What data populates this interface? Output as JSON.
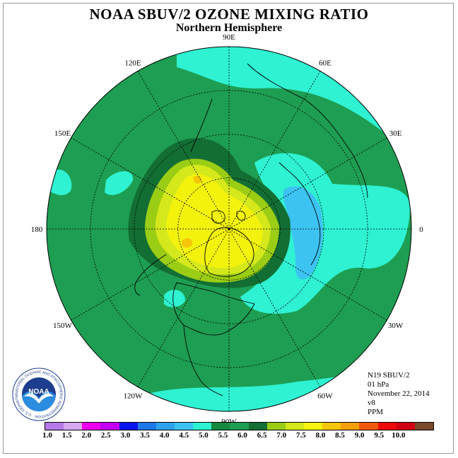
{
  "header": {
    "title": "NOAA SBUV/2 OZONE MIXING RATIO",
    "subtitle": "Northern Hemisphere"
  },
  "map": {
    "projection": "north-polar-stereographic",
    "longitude_labels": [
      {
        "text": "90E",
        "lon": 90
      },
      {
        "text": "60E",
        "lon": 60
      },
      {
        "text": "30E",
        "lon": 30
      },
      {
        "text": "0",
        "lon": 0
      },
      {
        "text": "30W",
        "lon": -30
      },
      {
        "text": "60W",
        "lon": -60
      },
      {
        "text": "90W",
        "lon": -90
      },
      {
        "text": "120W",
        "lon": -120
      },
      {
        "text": "150W",
        "lon": -150
      },
      {
        "text": "180",
        "lon": 180
      },
      {
        "text": "150E",
        "lon": 150
      },
      {
        "text": "120E",
        "lon": 120
      }
    ],
    "colors": {
      "c45": "#2ef2d2",
      "c50": "#1e9e52",
      "c55": "#17893f",
      "c60": "#136e33",
      "c65": "#9acd14",
      "c70": "#d4e81c",
      "c75": "#f2f20c",
      "c80": "#f5c60a",
      "c40": "#3cc3f2",
      "c35": "#2ea2ee",
      "coast": "#000000",
      "grid": "#000000"
    }
  },
  "info": {
    "instrument": "N19 SBUV/2",
    "level": "01 hPa",
    "date": "November 22, 2014",
    "version": "v8",
    "units": "PPM"
  },
  "colorbar": {
    "colors": [
      "#b57ae8",
      "#d8a8f0",
      "#ee00ee",
      "#c400f4",
      "#0a14f0",
      "#1e78e8",
      "#2ea2ee",
      "#3cc3f2",
      "#2ef2d2",
      "#17893f",
      "#1e9e52",
      "#136e33",
      "#9acd14",
      "#d4e81c",
      "#f2f20c",
      "#f5c60a",
      "#f5a00a",
      "#f55a0a",
      "#ee0a0a",
      "#d00010",
      "#7a4a2a"
    ],
    "ticks": [
      "1.0",
      "1.5",
      "2.0",
      "2.5",
      "3.0",
      "3.5",
      "4.0",
      "4.5",
      "5.0",
      "5.5",
      "6.0",
      "6.5",
      "7.0",
      "7.5",
      "8.0",
      "8.5",
      "9.0",
      "9.5",
      "10.0"
    ]
  },
  "logo": {
    "text": "NOAA",
    "ring_text": "NATIONAL OCEANIC AND ATMOSPHERIC ADMINISTRATION · U.S. DEPARTMENT OF COMMERCE",
    "colors": {
      "outer": "#1d3d8f",
      "inner": "#2b8de0",
      "bird": "#ffffff"
    }
  }
}
